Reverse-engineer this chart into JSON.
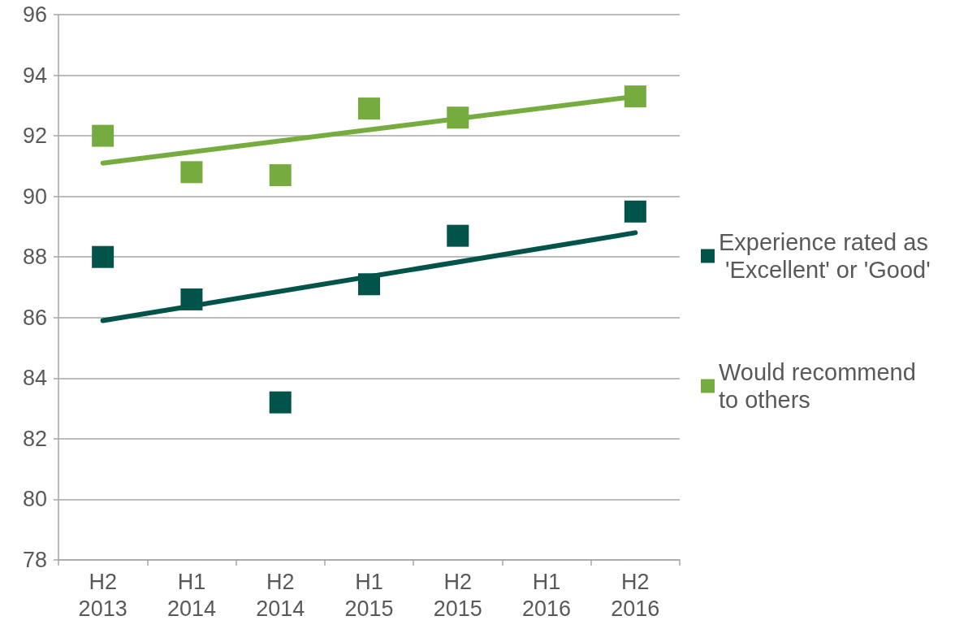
{
  "chart_data": {
    "type": "scatter",
    "categories": [
      "H2\n2013",
      "H1\n2014",
      "H2\n2014",
      "H1\n2015",
      "H2\n2015",
      "H1\n2016",
      "H2\n2016"
    ],
    "series": [
      {
        "name": "Experience rated as 'Excellent' or 'Good'",
        "color": "#02544b",
        "values": [
          88.0,
          86.6,
          83.2,
          87.1,
          88.7,
          null,
          89.5
        ]
      },
      {
        "name": "Would recommend to others",
        "color": "#76ac3f",
        "values": [
          92.0,
          90.8,
          90.7,
          92.9,
          92.6,
          null,
          93.3
        ]
      },
      {
        "type": "line",
        "color": "#02544b",
        "x": [
          "H2\n2013",
          "H2\n2016"
        ],
        "values": [
          85.9,
          88.8
        ],
        "marker": "none",
        "line_style": "solid"
      },
      {
        "type": "line",
        "color": "#76ac3f",
        "x": [
          "H2\n2013",
          "H2\n2016"
        ],
        "values": [
          91.1,
          93.3
        ],
        "marker": "none",
        "line_style": "solid"
      }
    ],
    "ylim": [
      78,
      96
    ],
    "yticks": [
      78,
      80,
      82,
      84,
      86,
      88,
      90,
      92,
      94,
      96
    ],
    "grid": "y",
    "legend": "right",
    "marker": "square"
  }
}
